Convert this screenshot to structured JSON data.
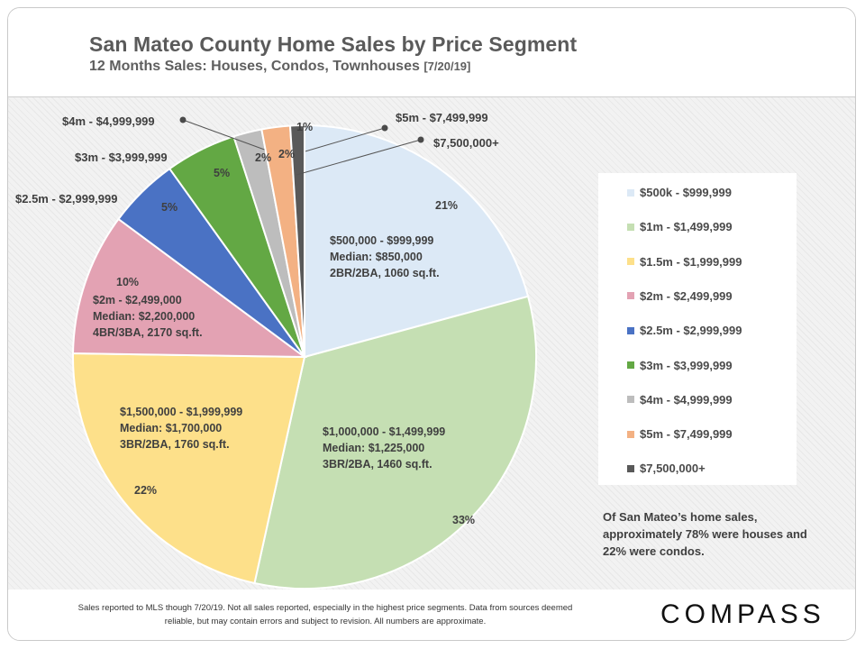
{
  "header": {
    "title": "San Mateo County Home Sales by Price Segment",
    "subtitle": "12 Months Sales: Houses, Condos, Townhouses",
    "subtitle_date": "[7/20/19]"
  },
  "chart_data": {
    "type": "pie",
    "title": "San Mateo County Home Sales by Price Segment",
    "subtitle": "12 Months Sales: Houses, Condos, Townhouses [7/20/19]",
    "legend_position": "right",
    "slices": [
      {
        "name": "$500k - $999,999",
        "value": 21,
        "label": "21%",
        "color": "#dce9f6",
        "detail": [
          "$500,000 - $999,999",
          "Median: $850,000",
          "2BR/2BA, 1060 sq.ft."
        ]
      },
      {
        "name": "$1m - $1,499,999",
        "value": 33,
        "label": "33%",
        "color": "#c5dfb3",
        "detail": [
          "$1,000,000 - $1,499,999",
          "Median: $1,225,000",
          "3BR/2BA, 1460 sq.ft."
        ]
      },
      {
        "name": "$1.5m - $1,999,999",
        "value": 22,
        "label": "22%",
        "color": "#fde08a",
        "detail": [
          "$1,500,000 - $1,999,999",
          "Median: $1,700,000",
          "3BR/2BA, 1760 sq.ft."
        ]
      },
      {
        "name": "$2m - $2,499,999",
        "value": 10,
        "label": "10%",
        "color": "#e3a2b3",
        "detail": [
          "$2m - $2,499,000",
          "Median: $2,200,000",
          "4BR/3BA, 2170 sq.ft."
        ]
      },
      {
        "name": "$2.5m - $2,999,999",
        "value": 5,
        "label": "5%",
        "color": "#4a72c4",
        "callout": "$2.5m - $2,999,999",
        "detail": []
      },
      {
        "name": "$3m - $3,999,999",
        "value": 5,
        "label": "5%",
        "color": "#63a844",
        "callout": "$3m - $3,999,999",
        "detail": []
      },
      {
        "name": "$4m - $4,999,999",
        "value": 2,
        "label": "2%",
        "color": "#bdbdbd",
        "callout": "$4m - $4,999,999",
        "detail": []
      },
      {
        "name": "$5m - $7,499,999",
        "value": 2,
        "label": "2%",
        "color": "#f3b183",
        "callout": "$5m - $7,499,999",
        "detail": []
      },
      {
        "name": "$7,500,000+",
        "value": 1,
        "label": "1%",
        "color": "#595959",
        "callout": "$7,500,000+",
        "detail": []
      }
    ]
  },
  "note": "Of San Mateo’s home sales, approximately 78% were houses and 22% were condos.",
  "footer": {
    "disclaimer": "Sales reported to MLS though 7/20/19. Not all sales reported, especially in the highest price segments. Data from sources deemed reliable, but may contain errors and subject to revision. All numbers are approximate.",
    "logo": "COMPASS"
  }
}
